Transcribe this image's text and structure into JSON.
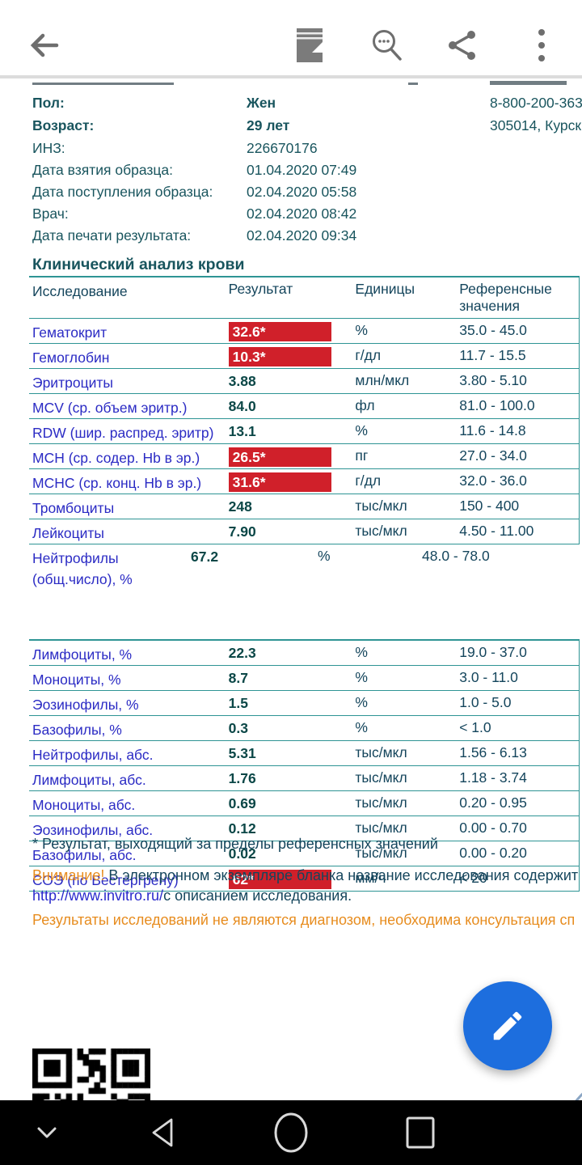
{
  "colors": {
    "accent_teal_line": "#2e9494",
    "label_teal": "#19555e",
    "name_blue": "#2b2bc4",
    "value_dark": "#0b4747",
    "ref_navy": "#14455c",
    "alert_red": "#d0202a",
    "warn_orange": "#e78c1e",
    "link_blue": "#2929cc",
    "fab_blue": "#1d6ede"
  },
  "toolbar": {
    "icons": [
      "back-arrow",
      "document-contents",
      "search-in-document",
      "share",
      "overflow-menu"
    ]
  },
  "document": {
    "contact": {
      "phone": "8-800-200-363",
      "address": "305014, Курск"
    },
    "info_rows": [
      {
        "label": "Пол:",
        "value": "Жен"
      },
      {
        "label": "Возраст:",
        "value": "29 лет"
      },
      {
        "label": "ИНЗ:",
        "value": "226670176"
      },
      {
        "label": "Дата взятия образца:",
        "value": "01.04.2020 07:49"
      },
      {
        "label": "Дата поступления образца:",
        "value": "02.04.2020 05:58"
      },
      {
        "label": "Врач:",
        "value": "02.04.2020 08:42"
      },
      {
        "label": "Дата печати результата:",
        "value": "02.04.2020 09:34"
      }
    ],
    "section_title": "Клинический анализ крови",
    "table": {
      "headers": [
        "Исследование",
        "Результат",
        "Единицы",
        "Референсные значения"
      ],
      "rows": [
        {
          "name": "Гематокрит",
          "result": "32.6*",
          "flagged": true,
          "units": "%",
          "ref": "35.0 - 45.0",
          "group": 1
        },
        {
          "name": "Гемоглобин",
          "result": "10.3*",
          "flagged": true,
          "units": "г/дл",
          "ref": "11.7 - 15.5",
          "group": 1
        },
        {
          "name": "Эритроциты",
          "result": "3.88",
          "flagged": false,
          "units": "млн/мкл",
          "ref": "3.80 - 5.10",
          "group": 1
        },
        {
          "name": "MCV (ср. объем эритр.)",
          "result": "84.0",
          "flagged": false,
          "units": "фл",
          "ref": "81.0 - 100.0",
          "group": 1
        },
        {
          "name": "RDW (шир. распред. эритр)",
          "result": "13.1",
          "flagged": false,
          "units": "%",
          "ref": "11.6 - 14.8",
          "group": 1
        },
        {
          "name": "MCH (ср. содер. Hb в эр.)",
          "result": "26.5*",
          "flagged": true,
          "units": "пг",
          "ref": "27.0 - 34.0",
          "group": 1
        },
        {
          "name": "MCHC (ср. конц. Hb в эр.)",
          "result": "31.6*",
          "flagged": true,
          "units": "г/дл",
          "ref": "32.0 - 36.0",
          "group": 1
        },
        {
          "name": "Тромбоциты",
          "result": "248",
          "flagged": false,
          "units": "тыс/мкл",
          "ref": "150 - 400",
          "group": 1
        },
        {
          "name": "Лейкоциты",
          "result": "7.90",
          "flagged": false,
          "units": "тыс/мкл",
          "ref": "4.50 - 11.00",
          "group": 1
        },
        {
          "name": "Нейтрофилы (общ.число), %",
          "result": "67.2",
          "flagged": false,
          "units": "%",
          "ref": "48.0 - 78.0",
          "group": 1,
          "wrap": true
        },
        {
          "name": "Лимфоциты, %",
          "result": "22.3",
          "flagged": false,
          "units": "%",
          "ref": "19.0 - 37.0",
          "group": 2
        },
        {
          "name": "Моноциты, %",
          "result": "8.7",
          "flagged": false,
          "units": "%",
          "ref": "3.0 - 11.0",
          "group": 2
        },
        {
          "name": "Эозинофилы, %",
          "result": "1.5",
          "flagged": false,
          "units": "%",
          "ref": "1.0 - 5.0",
          "group": 2
        },
        {
          "name": "Базофилы, %",
          "result": "0.3",
          "flagged": false,
          "units": "%",
          "ref": "< 1.0",
          "group": 2
        },
        {
          "name": "Нейтрофилы, абс.",
          "result": "5.31",
          "flagged": false,
          "units": "тыс/мкл",
          "ref": "1.56 - 6.13",
          "group": 2
        },
        {
          "name": "Лимфоциты, абс.",
          "result": "1.76",
          "flagged": false,
          "units": "тыс/мкл",
          "ref": "1.18 - 3.74",
          "group": 2
        },
        {
          "name": "Моноциты, абс.",
          "result": "0.69",
          "flagged": false,
          "units": "тыс/мкл",
          "ref": "0.20 - 0.95",
          "group": 2
        },
        {
          "name": "Эозинофилы, абс.",
          "result": "0.12",
          "flagged": false,
          "units": "тыс/мкл",
          "ref": "0.00 - 0.70",
          "group": 2
        },
        {
          "name": "Базофилы, абс.",
          "result": "0.02",
          "flagged": false,
          "units": "тыс/мкл",
          "ref": "0.00 - 0.20",
          "group": 2
        },
        {
          "name": "СОЭ (по Вестергрену)",
          "result": "62*",
          "flagged": true,
          "units": "мм/ч",
          "ref": "< 20",
          "group": 2
        }
      ]
    },
    "footnote": "* Результат, выходящий за пределы референсных значений",
    "warning": {
      "prefix": "Внимание!",
      "text": " В электронном экземпляре бланка название исследования содержит",
      "link": "http://www.invitro.ru/",
      "suffix": "с описанием исследования."
    },
    "disclaimer": "Результаты исследований не являются диагнозом, необходима консультация сп"
  },
  "navbar": {
    "icons": [
      "hide-navigation-chevron",
      "back",
      "home",
      "recents"
    ]
  }
}
